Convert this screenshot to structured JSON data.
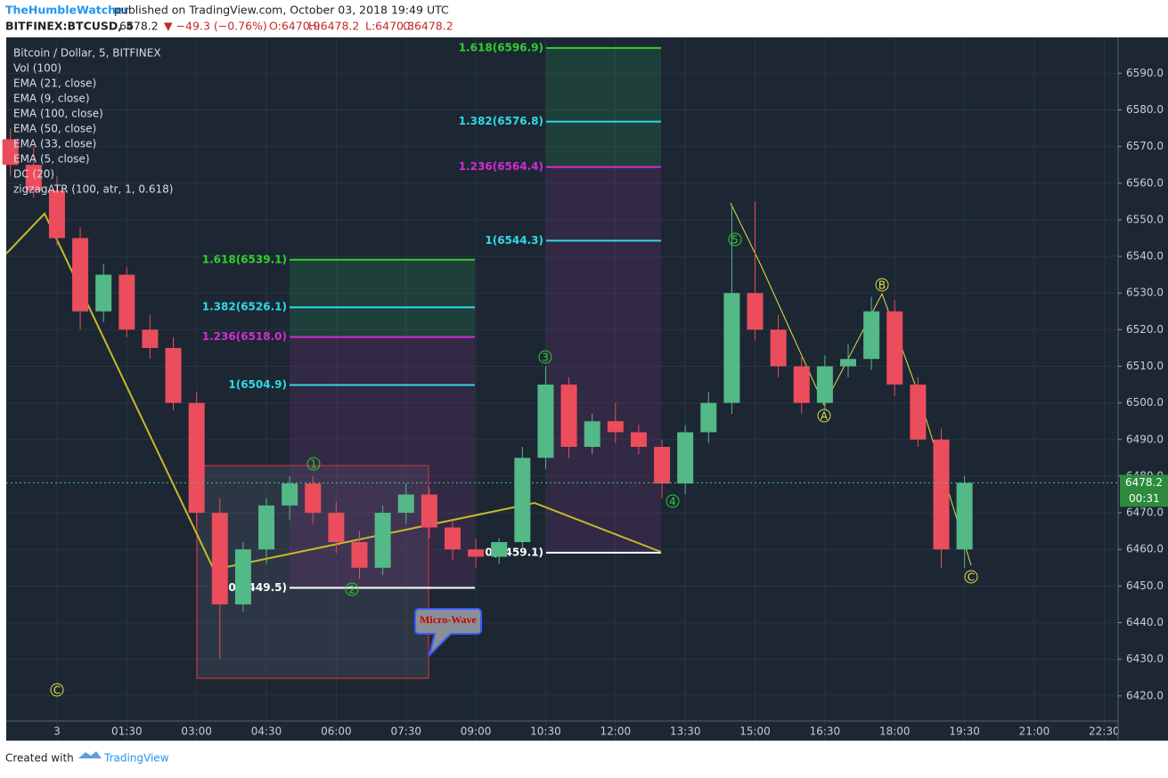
{
  "header": {
    "author": "TheHumbleWatcher",
    "published": "published on TradingView.com, October 03, 2018 19:49 UTC",
    "symbol": "BITFINEX:BTCUSD, 5",
    "last": "6478.2",
    "change": "▼ −49.3 (−0.76%)",
    "open": "O:6470.9",
    "high": "H:6478.2",
    "low": "L:6470.8",
    "close": "C:6478.2"
  },
  "indicators": [
    "Bitcoin / Dollar, 5, BITFINEX",
    "Vol (100)",
    "EMA (21, close)",
    "EMA (9, close)",
    "EMA (100, close)",
    "EMA (50, close)",
    "EMA (33, close)",
    "EMA (5, close)",
    "DC (20)",
    "zigzagATR (100, atr, 1, 0.618)"
  ],
  "chart_data": {
    "type": "candlestick",
    "x": [
      -1,
      -0.5,
      0,
      0.5,
      1,
      1.5,
      2,
      2.5,
      3,
      3.5,
      4,
      4.5,
      5,
      5.5,
      6,
      6.5,
      7,
      7.5,
      8,
      8.5,
      9,
      9.5,
      10,
      10.5,
      11,
      11.5,
      12,
      12.5,
      13,
      13.5,
      14,
      14.5,
      15,
      15.5,
      16,
      16.5,
      17,
      17.5,
      18,
      18.5,
      19,
      19.5
    ],
    "open": [
      6572,
      6565,
      6558,
      6545,
      6525,
      6535,
      6520,
      6515,
      6500,
      6470,
      6445,
      6460,
      6472,
      6478,
      6470,
      6462,
      6455,
      6470,
      6475,
      6466,
      6460,
      6458,
      6462,
      6485,
      6505,
      6488,
      6495,
      6492,
      6488,
      6478,
      6492,
      6500,
      6530,
      6520,
      6510,
      6500,
      6510,
      6512,
      6525,
      6505,
      6490,
      6460
    ],
    "high": [
      6575,
      6570,
      6562,
      6548,
      6538,
      6537,
      6524,
      6518,
      6503,
      6474,
      6462,
      6474,
      6480,
      6480,
      6473,
      6465,
      6472,
      6478,
      6477,
      6468,
      6463,
      6463,
      6488,
      6510,
      6507,
      6497,
      6500,
      6494,
      6490,
      6494,
      6503,
      6554,
      6555,
      6524,
      6513,
      6513,
      6516,
      6529,
      6528,
      6507,
      6493,
      6480
    ],
    "low": [
      6562,
      6556,
      6543,
      6520,
      6522,
      6518,
      6512,
      6498,
      6466,
      6430,
      6443,
      6456,
      6468,
      6467,
      6459,
      6452,
      6453,
      6467,
      6463,
      6457,
      6455,
      6456,
      6460,
      6482,
      6485,
      6486,
      6489,
      6486,
      6474,
      6475,
      6489,
      6497,
      6517,
      6507,
      6497,
      6498,
      6507,
      6509,
      6502,
      6488,
      6455,
      6455
    ],
    "close": [
      6565,
      6558,
      6545,
      6525,
      6535,
      6520,
      6515,
      6500,
      6470,
      6445,
      6460,
      6472,
      6478,
      6470,
      6462,
      6455,
      6470,
      6475,
      6466,
      6460,
      6458,
      6462,
      6485,
      6505,
      6488,
      6495,
      6492,
      6488,
      6478,
      6492,
      6500,
      6530,
      6520,
      6510,
      6500,
      6510,
      6512,
      6525,
      6505,
      6490,
      6460,
      6478.2
    ],
    "up_color": "#53b987",
    "down_color": "#eb4d5c",
    "xlim": [
      -1.09,
      22.8
    ],
    "ylim": [
      6407.8,
      6599.8
    ],
    "xticks": [
      {
        "value": 0,
        "label": "3"
      },
      {
        "value": 1.5,
        "label": "01:30"
      },
      {
        "value": 3,
        "label": "03:00"
      },
      {
        "value": 4.5,
        "label": "04:30"
      },
      {
        "value": 6,
        "label": "06:00"
      },
      {
        "value": 7.5,
        "label": "07:30"
      },
      {
        "value": 9,
        "label": "09:00"
      },
      {
        "value": 10.5,
        "label": "10:30"
      },
      {
        "value": 12,
        "label": "12:00"
      },
      {
        "value": 13.5,
        "label": "13:30"
      },
      {
        "value": 15,
        "label": "15:00"
      },
      {
        "value": 16.5,
        "label": "16:30"
      },
      {
        "value": 18,
        "label": "18:00"
      },
      {
        "value": 19.5,
        "label": "19:30"
      },
      {
        "value": 21,
        "label": "21:00"
      },
      {
        "value": 22.5,
        "label": "22:30"
      }
    ],
    "yticks": [
      {
        "value": 6420,
        "label": "6420.0"
      },
      {
        "value": 6430,
        "label": "6430.0"
      },
      {
        "value": 6440,
        "label": "6440.0"
      },
      {
        "value": 6450,
        "label": "6450.0"
      },
      {
        "value": 6460,
        "label": "6460.0"
      },
      {
        "value": 6470,
        "label": "6470.0"
      },
      {
        "value": 6480,
        "label": "6480.0"
      },
      {
        "value": 6490,
        "label": "6490.0"
      },
      {
        "value": 6500,
        "label": "6500.0"
      },
      {
        "value": 6510,
        "label": "6510.0"
      },
      {
        "value": 6520,
        "label": "6520.0"
      },
      {
        "value": 6530,
        "label": "6530.0"
      },
      {
        "value": 6540,
        "label": "6540.0"
      },
      {
        "value": 6550,
        "label": "6550.0"
      },
      {
        "value": 6560,
        "label": "6560.0"
      },
      {
        "value": 6570,
        "label": "6570.0"
      },
      {
        "value": 6580,
        "label": "6580.0"
      },
      {
        "value": 6590,
        "label": "6590.0"
      }
    ],
    "grid": true,
    "last_price": {
      "value": 6478.2,
      "label": "6478.2"
    },
    "countdown": "00:31",
    "fib_sets": [
      {
        "levels": [
          {
            "value": 6539.1,
            "label": "1.618(6539.1)",
            "color": "#2fd12f"
          },
          {
            "value": 6526.1,
            "label": "1.382(6526.1)",
            "color": "#2fd9e6"
          },
          {
            "value": 6518.0,
            "label": "1.236(6518.0)",
            "color": "#d42bd4"
          },
          {
            "value": 6504.9,
            "label": "1(6504.9)",
            "color": "#2fd9e6"
          },
          {
            "value": 6449.5,
            "label": "0(6449.5)",
            "color": "#ffffff"
          }
        ]
      },
      {
        "levels": [
          {
            "value": 6596.9,
            "label": "1.618(6596.9)",
            "color": "#2fd12f"
          },
          {
            "value": 6576.8,
            "label": "1.382(6576.8)",
            "color": "#2fd9e6"
          },
          {
            "value": 6564.4,
            "label": "1.236(6564.4)",
            "color": "#d42bd4"
          },
          {
            "value": 6544.3,
            "label": "1(6544.3)",
            "color": "#2fd9e6"
          },
          {
            "value": 6459.1,
            "label": "0(6459.1)",
            "color": "#ffffff"
          }
        ]
      }
    ],
    "wave_labels": [
      "1",
      "2",
      "3",
      "4",
      "5",
      "A",
      "B",
      "C",
      "C"
    ],
    "callout": "Micro-Wave"
  },
  "footer": {
    "created": "Created with",
    "brand": "TradingView"
  }
}
